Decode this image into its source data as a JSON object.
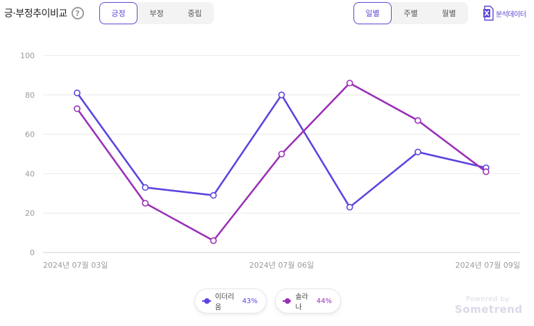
{
  "header": {
    "title": "긍·부정추이비교",
    "help_icon": "?"
  },
  "sentiment_tabs": [
    {
      "label": "긍정",
      "active": true
    },
    {
      "label": "부정",
      "active": false
    },
    {
      "label": "중립",
      "active": false
    }
  ],
  "period_tabs": [
    {
      "label": "일별",
      "active": true
    },
    {
      "label": "주별",
      "active": false
    },
    {
      "label": "월별",
      "active": false
    }
  ],
  "export": {
    "label": "분석데이터",
    "icon": "excel-icon"
  },
  "colors": {
    "accent": "#5e47d2",
    "series1": "#5b45df",
    "series2": "#9b2fb8"
  },
  "legend": [
    {
      "name": "이더리움",
      "pct": "43%"
    },
    {
      "name": "솔라나",
      "pct": "44%"
    }
  ],
  "branding": {
    "line1": "Powered by",
    "line2": "Sometrend"
  },
  "chart_data": {
    "type": "line",
    "ylim": [
      0,
      100
    ],
    "yticks": [
      0,
      20,
      40,
      60,
      80,
      100
    ],
    "grid": true,
    "x": [
      "2024년 07월 03일",
      "2024년 07월 04일",
      "2024년 07월 05일",
      "2024년 07월 06일",
      "2024년 07월 07일",
      "2024년 07월 08일",
      "2024년 07월 09일"
    ],
    "xtick_labels": [
      "2024년 07월 03일",
      "2024년 07월 06일",
      "2024년 07월 09일"
    ],
    "xtick_indices": [
      0,
      3,
      6
    ],
    "legend_position": "bottom",
    "series": [
      {
        "name": "이더리움",
        "values": [
          81,
          33,
          29,
          80,
          23,
          51,
          43
        ]
      },
      {
        "name": "솔라나",
        "values": [
          73,
          25,
          6,
          50,
          86,
          67,
          41
        ]
      }
    ]
  }
}
